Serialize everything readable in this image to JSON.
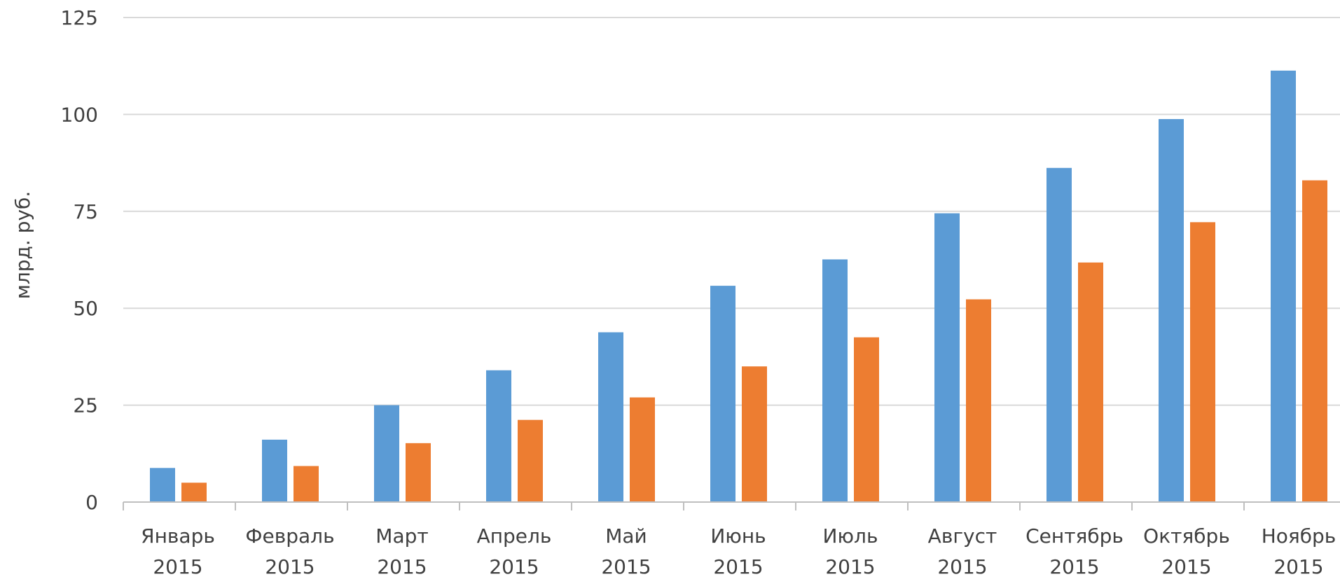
{
  "chart_data": {
    "type": "bar",
    "ylabel": "млрд. руб.",
    "ylim": [
      0,
      125
    ],
    "y_ticks": [
      "0",
      "25",
      "50",
      "75",
      "100",
      "125"
    ],
    "grid": true,
    "categories": [
      [
        "Январь",
        "2015"
      ],
      [
        "Февраль",
        "2015"
      ],
      [
        "Март",
        "2015"
      ],
      [
        "Апрель",
        "2015"
      ],
      [
        "Май",
        "2015"
      ],
      [
        "Июнь",
        "2015"
      ],
      [
        "Июль",
        "2015"
      ],
      [
        "Август",
        "2015"
      ],
      [
        "Сентябрь",
        "2015"
      ],
      [
        "Октябрь",
        "2015"
      ],
      [
        "Ноябрь",
        "2015"
      ]
    ],
    "series": [
      {
        "color": "#5B9BD5",
        "values": [
          8.8,
          16.1,
          25.0,
          34.0,
          43.8,
          55.8,
          62.6,
          74.5,
          86.2,
          98.8,
          111.3
        ]
      },
      {
        "color": "#ED7D31",
        "values": [
          5.0,
          9.3,
          15.2,
          21.2,
          27.0,
          35.0,
          42.5,
          52.3,
          61.8,
          72.2,
          83.0
        ]
      }
    ]
  }
}
